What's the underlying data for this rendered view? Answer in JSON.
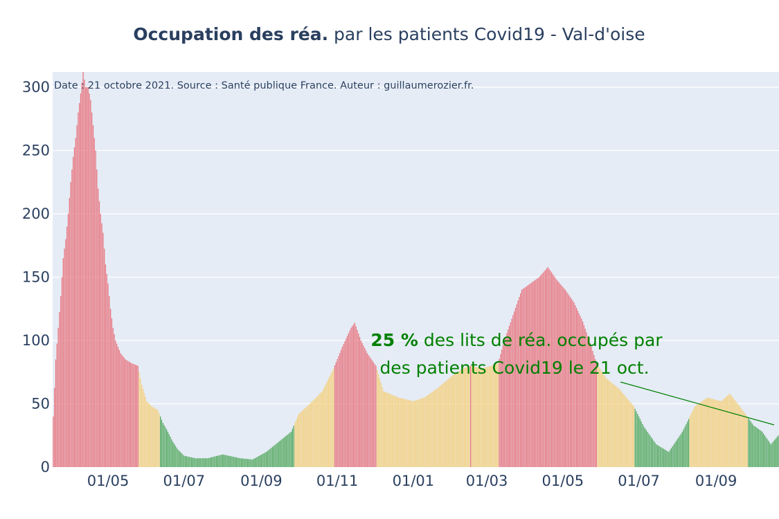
{
  "title": {
    "bold": "Occupation des réa.",
    "rest": " par les patients Covid19 - Val-d'oise"
  },
  "source_note": "Date : 21 octobre 2021. Source : Santé publique France. Auteur : guillaumerozier.fr.",
  "annotation": {
    "percent": "25  %",
    "line1_rest": " des lits de réa. occupés par",
    "line2": "des patients Covid19 le 21 oct."
  },
  "colors": {
    "plot_bg": "#e5ecf6",
    "grid": "#ffffff",
    "red": "#e8727c",
    "yellow": "#f5cf79",
    "green": "#4fa65a",
    "annotation": "#008000",
    "text": "#2a3f5f"
  },
  "chart_data": {
    "type": "bar",
    "x_unit": "date",
    "ylim": [
      0,
      312
    ],
    "yticks": [
      0,
      50,
      100,
      150,
      200,
      250,
      300
    ],
    "xticks": [
      {
        "date": "2020-05-01",
        "label": "01/05"
      },
      {
        "date": "2020-07-01",
        "label": "01/07"
      },
      {
        "date": "2020-09-01",
        "label": "01/09"
      },
      {
        "date": "2020-11-01",
        "label": "01/11"
      },
      {
        "date": "2021-01-01",
        "label": "01/01"
      },
      {
        "date": "2021-03-01",
        "label": "01/03"
      },
      {
        "date": "2021-05-01",
        "label": "01/05"
      },
      {
        "date": "2021-07-01",
        "label": "01/07"
      },
      {
        "date": "2021-09-01",
        "label": "01/09"
      }
    ],
    "x_start": "2020-03-18",
    "x_end": "2021-10-21",
    "color_rule": "red when value >= 80 (Apr-May 2020 peak) or within red periods; colors per period listed in periods",
    "periods": [
      {
        "from": "2020-03-18",
        "to": "2020-05-25",
        "color": "red"
      },
      {
        "from": "2020-05-26",
        "to": "2020-06-11",
        "color": "yellow"
      },
      {
        "from": "2020-06-12",
        "to": "2020-09-27",
        "color": "green"
      },
      {
        "from": "2020-09-28",
        "to": "2020-10-29",
        "color": "yellow"
      },
      {
        "from": "2020-10-30",
        "to": "2020-12-02",
        "color": "red"
      },
      {
        "from": "2020-12-03",
        "to": "2021-02-15",
        "color": "yellow"
      },
      {
        "from": "2021-02-16",
        "to": "2021-02-16",
        "color": "red"
      },
      {
        "from": "2021-02-17",
        "to": "2021-03-10",
        "color": "yellow"
      },
      {
        "from": "2021-03-11",
        "to": "2021-05-28",
        "color": "red"
      },
      {
        "from": "2021-05-29",
        "to": "2021-06-27",
        "color": "yellow"
      },
      {
        "from": "2021-06-28",
        "to": "2021-08-10",
        "color": "green"
      },
      {
        "from": "2021-08-11",
        "to": "2021-09-26",
        "color": "yellow"
      },
      {
        "from": "2021-09-27",
        "to": "2021-10-21",
        "color": "green"
      }
    ],
    "series": [
      {
        "values_by_date": [
          [
            "2020-03-18",
            40
          ],
          [
            "2020-03-20",
            85
          ],
          [
            "2020-03-22",
            110
          ],
          [
            "2020-03-24",
            135
          ],
          [
            "2020-03-26",
            165
          ],
          [
            "2020-03-28",
            180
          ],
          [
            "2020-03-30",
            200
          ],
          [
            "2020-04-01",
            225
          ],
          [
            "2020-04-03",
            245
          ],
          [
            "2020-04-05",
            260
          ],
          [
            "2020-04-07",
            280
          ],
          [
            "2020-04-09",
            295
          ],
          [
            "2020-04-11",
            312
          ],
          [
            "2020-04-13",
            300
          ],
          [
            "2020-04-15",
            300
          ],
          [
            "2020-04-17",
            290
          ],
          [
            "2020-04-19",
            270
          ],
          [
            "2020-04-21",
            250
          ],
          [
            "2020-04-23",
            220
          ],
          [
            "2020-04-25",
            200
          ],
          [
            "2020-04-27",
            185
          ],
          [
            "2020-04-29",
            160
          ],
          [
            "2020-05-01",
            145
          ],
          [
            "2020-05-03",
            125
          ],
          [
            "2020-05-05",
            110
          ],
          [
            "2020-05-07",
            100
          ],
          [
            "2020-05-09",
            95
          ],
          [
            "2020-05-11",
            90
          ],
          [
            "2020-05-15",
            85
          ],
          [
            "2020-05-20",
            82
          ],
          [
            "2020-05-25",
            80
          ],
          [
            "2020-05-28",
            65
          ],
          [
            "2020-06-01",
            52
          ],
          [
            "2020-06-05",
            48
          ],
          [
            "2020-06-10",
            45
          ],
          [
            "2020-06-14",
            35
          ],
          [
            "2020-06-18",
            28
          ],
          [
            "2020-06-22",
            20
          ],
          [
            "2020-06-26",
            14
          ],
          [
            "2020-07-01",
            9
          ],
          [
            "2020-07-10",
            7
          ],
          [
            "2020-07-20",
            7
          ],
          [
            "2020-08-01",
            10
          ],
          [
            "2020-08-15",
            7
          ],
          [
            "2020-08-25",
            6
          ],
          [
            "2020-09-05",
            12
          ],
          [
            "2020-09-15",
            20
          ],
          [
            "2020-09-25",
            28
          ],
          [
            "2020-10-01",
            42
          ],
          [
            "2020-10-10",
            50
          ],
          [
            "2020-10-20",
            60
          ],
          [
            "2020-10-29",
            78
          ],
          [
            "2020-11-05",
            95
          ],
          [
            "2020-11-12",
            110
          ],
          [
            "2020-11-15",
            114
          ],
          [
            "2020-11-20",
            100
          ],
          [
            "2020-11-25",
            90
          ],
          [
            "2020-12-02",
            80
          ],
          [
            "2020-12-08",
            60
          ],
          [
            "2020-12-20",
            55
          ],
          [
            "2021-01-01",
            52
          ],
          [
            "2021-01-10",
            55
          ],
          [
            "2021-01-20",
            62
          ],
          [
            "2021-02-01",
            72
          ],
          [
            "2021-02-10",
            78
          ],
          [
            "2021-02-16",
            80
          ],
          [
            "2021-02-25",
            78
          ],
          [
            "2021-03-05",
            80
          ],
          [
            "2021-03-10",
            82
          ],
          [
            "2021-03-15",
            100
          ],
          [
            "2021-03-22",
            120
          ],
          [
            "2021-03-29",
            140
          ],
          [
            "2021-04-05",
            145
          ],
          [
            "2021-04-12",
            150
          ],
          [
            "2021-04-19",
            158
          ],
          [
            "2021-04-26",
            148
          ],
          [
            "2021-05-03",
            140
          ],
          [
            "2021-05-10",
            130
          ],
          [
            "2021-05-17",
            115
          ],
          [
            "2021-05-24",
            95
          ],
          [
            "2021-05-28",
            82
          ],
          [
            "2021-06-05",
            70
          ],
          [
            "2021-06-15",
            62
          ],
          [
            "2021-06-27",
            48
          ],
          [
            "2021-07-05",
            32
          ],
          [
            "2021-07-15",
            18
          ],
          [
            "2021-07-25",
            12
          ],
          [
            "2021-08-05",
            28
          ],
          [
            "2021-08-10",
            38
          ],
          [
            "2021-08-15",
            48
          ],
          [
            "2021-08-25",
            55
          ],
          [
            "2021-09-05",
            52
          ],
          [
            "2021-09-12",
            58
          ],
          [
            "2021-09-20",
            48
          ],
          [
            "2021-09-26",
            40
          ],
          [
            "2021-10-01",
            33
          ],
          [
            "2021-10-08",
            28
          ],
          [
            "2021-10-15",
            18
          ],
          [
            "2021-10-21",
            25
          ]
        ]
      }
    ]
  }
}
